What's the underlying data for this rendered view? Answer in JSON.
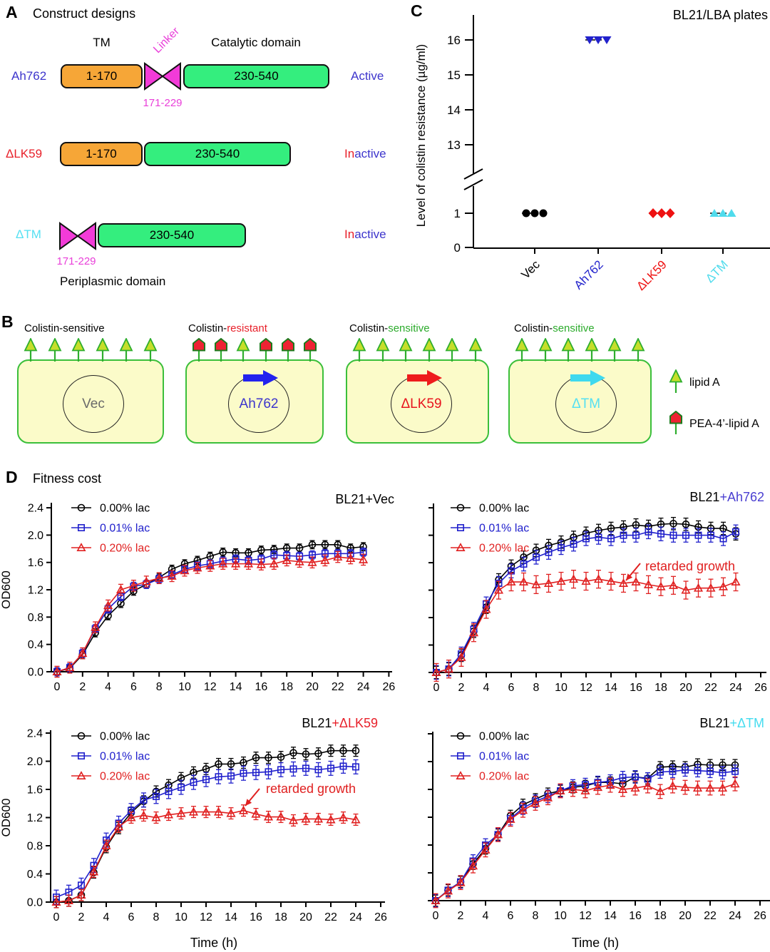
{
  "panels": {
    "a_letter": "A",
    "b_letter": "B",
    "c_letter": "C",
    "d_letter": "D"
  },
  "panelA": {
    "title": "Construct designs",
    "headers": {
      "tm": "TM",
      "linker": "Linker",
      "catalytic": "Catalytic domain"
    },
    "footer": "Periplasmic domain",
    "rows": [
      {
        "name": "Ah762",
        "name_color": "#3d35cc",
        "tm": "1-170",
        "cat": "230-540",
        "linker_range": "171-229",
        "activity_prefix": "",
        "activity_main": "Active"
      },
      {
        "name": "ΔLK59",
        "name_color": "#e8202a",
        "tm": "1-170",
        "cat": "230-540",
        "activity_prefix": "In",
        "activity_main": "active"
      },
      {
        "name": "ΔTM",
        "name_color": "#55e0f2",
        "cat": "230-540",
        "linker_range": "171-229",
        "activity_prefix": "In",
        "activity_main": "active"
      }
    ]
  },
  "panelB": {
    "cells": [
      {
        "header_prefix": "Colistin-",
        "header_suffix": "sensitive",
        "suffix_color": "#000000",
        "plasmid": "Vec",
        "plasmid_color": "#6a6a6a",
        "surface": [
          "lipidA",
          "lipidA",
          "lipidA",
          "lipidA",
          "lipidA",
          "lipidA"
        ]
      },
      {
        "header_prefix": "Colistin-",
        "header_suffix": "resistant",
        "suffix_color": "#e8202a",
        "plasmid": "Ah762",
        "plasmid_color": "#3d35cc",
        "arrow_color": "#2222ee",
        "surface": [
          "pea",
          "pea",
          "lipidA",
          "pea",
          "pea",
          "pea"
        ]
      },
      {
        "header_prefix": "Colistin-",
        "header_suffix": "sensitive",
        "suffix_color": "#2cab2c",
        "plasmid": "ΔLK59",
        "plasmid_color": "#e8141e",
        "arrow_color": "#ee1c1c",
        "surface": [
          "lipidA",
          "lipidA",
          "lipidA",
          "lipidA",
          "lipidA",
          "lipidA"
        ]
      },
      {
        "header_prefix": "Colistin-",
        "header_suffix": "sensitive",
        "suffix_color": "#2cab2c",
        "plasmid": "ΔTM",
        "plasmid_color": "#55e0f2",
        "arrow_color": "#3fd9ee",
        "surface": [
          "lipidA",
          "lipidA",
          "lipidA",
          "lipidA",
          "lipidA",
          "lipidA"
        ]
      }
    ],
    "legend": [
      {
        "icon": "lipidA",
        "label": "lipid A"
      },
      {
        "icon": "pea",
        "label": "PEA-4’-lipid A"
      }
    ]
  },
  "panelD_title": "Fitness cost",
  "chart_data": [
    {
      "id": "colistin_resistance",
      "type": "scatter",
      "title": "BL21/LBA plates",
      "ylabel": "Level of colistin resistance (µg/ml)",
      "broken_axis": true,
      "upper_ticks": [
        13,
        14,
        15,
        16
      ],
      "lower_ticks": [
        0,
        1
      ],
      "groups": [
        {
          "label": "Vec",
          "color": "#000000",
          "marker": "circle",
          "values": [
            1,
            1,
            1
          ]
        },
        {
          "label": "Ah762",
          "color": "#2222cc",
          "marker": "triangle-down",
          "values": [
            16,
            16,
            16
          ]
        },
        {
          "label": "ΔLK59",
          "color": "#ee1111",
          "marker": "diamond",
          "values": [
            1,
            1,
            1
          ]
        },
        {
          "label": "ΔTM",
          "color": "#4fdbec",
          "marker": "triangle-up",
          "values": [
            1,
            1,
            1
          ]
        }
      ]
    },
    {
      "id": "growth_vec",
      "type": "line",
      "title_prefix": "BL21",
      "title_suffix": "+Vec",
      "title_suffix_color": "#000000",
      "ylabel": "OD600",
      "xlim": [
        0,
        26
      ],
      "ylim": [
        0,
        2.4
      ],
      "x": [
        0,
        1,
        2,
        3,
        4,
        5,
        6,
        7,
        8,
        9,
        10,
        11,
        12,
        13,
        14,
        15,
        16,
        17,
        18,
        19,
        20,
        21,
        22,
        23,
        24
      ],
      "series": [
        {
          "name": "0.00% lac",
          "color": "#000000",
          "marker": "circle",
          "err": 0.06,
          "values": [
            0.0,
            0.05,
            0.25,
            0.57,
            0.82,
            1.0,
            1.18,
            1.28,
            1.38,
            1.5,
            1.58,
            1.63,
            1.69,
            1.75,
            1.74,
            1.74,
            1.78,
            1.79,
            1.81,
            1.81,
            1.86,
            1.86,
            1.86,
            1.81,
            1.83
          ]
        },
        {
          "name": "0.01% lac",
          "color": "#2020cc",
          "marker": "square",
          "err": 0.06,
          "values": [
            0.0,
            0.06,
            0.27,
            0.63,
            0.92,
            1.1,
            1.25,
            1.28,
            1.36,
            1.42,
            1.5,
            1.55,
            1.58,
            1.62,
            1.65,
            1.63,
            1.65,
            1.71,
            1.7,
            1.69,
            1.71,
            1.73,
            1.73,
            1.73,
            1.75
          ]
        },
        {
          "name": "0.20% lac",
          "color": "#e02020",
          "marker": "triangle",
          "err": 0.08,
          "values": [
            0.0,
            0.06,
            0.27,
            0.65,
            0.97,
            1.2,
            1.26,
            1.32,
            1.37,
            1.4,
            1.48,
            1.52,
            1.55,
            1.58,
            1.58,
            1.58,
            1.57,
            1.58,
            1.63,
            1.61,
            1.6,
            1.63,
            1.68,
            1.66,
            1.64
          ]
        }
      ]
    },
    {
      "id": "growth_ah762",
      "type": "line",
      "title_prefix": "BL21",
      "title_suffix": "+Ah762",
      "title_suffix_color": "#4a3fd1",
      "xlim": [
        0,
        26
      ],
      "ylim": [
        0,
        2.4
      ],
      "annotation": "retarded growth",
      "x": [
        0,
        1,
        2,
        3,
        4,
        5,
        6,
        7,
        8,
        9,
        10,
        11,
        12,
        13,
        14,
        15,
        16,
        17,
        18,
        19,
        20,
        21,
        22,
        23,
        24
      ],
      "series": [
        {
          "name": "0.00% lac",
          "color": "#000000",
          "marker": "circle",
          "err": 0.09,
          "values": [
            0.0,
            0.05,
            0.25,
            0.6,
            0.95,
            1.35,
            1.55,
            1.68,
            1.78,
            1.85,
            1.9,
            1.97,
            2.03,
            2.07,
            2.1,
            2.12,
            2.15,
            2.13,
            2.16,
            2.17,
            2.16,
            2.12,
            2.1,
            2.1,
            2.02
          ]
        },
        {
          "name": "0.01% lac",
          "color": "#2020cc",
          "marker": "square",
          "err": 0.1,
          "values": [
            0.0,
            0.05,
            0.27,
            0.63,
            1.0,
            1.3,
            1.48,
            1.58,
            1.68,
            1.75,
            1.82,
            1.87,
            1.95,
            1.97,
            1.95,
            2.0,
            2.0,
            2.05,
            2.02,
            2.0,
            2.0,
            2.0,
            2.0,
            1.95,
            2.05
          ]
        },
        {
          "name": "0.20% lac",
          "color": "#e02020",
          "marker": "triangle",
          "err": 0.13,
          "values": [
            0.0,
            0.05,
            0.22,
            0.58,
            0.92,
            1.2,
            1.32,
            1.32,
            1.28,
            1.3,
            1.33,
            1.36,
            1.33,
            1.36,
            1.33,
            1.3,
            1.32,
            1.28,
            1.25,
            1.27,
            1.2,
            1.23,
            1.23,
            1.25,
            1.32
          ]
        }
      ]
    },
    {
      "id": "growth_dlk59",
      "type": "line",
      "title_prefix": "BL21",
      "title_suffix": "+ΔLK59",
      "title_suffix_color": "#e8202a",
      "ylabel": "OD600",
      "xlabel": "Time (h)",
      "xlim": [
        0,
        26
      ],
      "ylim": [
        0,
        2.4
      ],
      "annotation": "retarded growth",
      "x": [
        0,
        1,
        2,
        3,
        4,
        5,
        6,
        7,
        8,
        9,
        10,
        11,
        12,
        13,
        14,
        15,
        16,
        17,
        18,
        19,
        20,
        21,
        22,
        23,
        24
      ],
      "series": [
        {
          "name": "0.00% lac",
          "color": "#000000",
          "marker": "circle",
          "err": 0.08,
          "values": [
            0.0,
            0.02,
            0.1,
            0.42,
            0.78,
            1.05,
            1.27,
            1.43,
            1.57,
            1.66,
            1.76,
            1.84,
            1.89,
            1.96,
            1.96,
            1.98,
            2.05,
            2.05,
            2.06,
            2.12,
            2.1,
            2.11,
            2.15,
            2.15,
            2.15
          ]
        },
        {
          "name": "0.01% lac",
          "color": "#2020cc",
          "marker": "square",
          "err": 0.1,
          "values": [
            0.07,
            0.14,
            0.24,
            0.52,
            0.88,
            1.12,
            1.3,
            1.45,
            1.5,
            1.57,
            1.63,
            1.7,
            1.74,
            1.78,
            1.79,
            1.83,
            1.84,
            1.85,
            1.88,
            1.89,
            1.9,
            1.88,
            1.9,
            1.93,
            1.92
          ]
        },
        {
          "name": "0.20% lac",
          "color": "#e02020",
          "marker": "triangle",
          "err": 0.08,
          "values": [
            0.0,
            0.02,
            0.1,
            0.43,
            0.8,
            1.07,
            1.2,
            1.23,
            1.2,
            1.24,
            1.26,
            1.28,
            1.28,
            1.28,
            1.26,
            1.3,
            1.25,
            1.21,
            1.21,
            1.16,
            1.18,
            1.18,
            1.17,
            1.2,
            1.17
          ]
        }
      ]
    },
    {
      "id": "growth_dtm",
      "type": "line",
      "title_prefix": "BL21",
      "title_suffix": "+ΔTM",
      "title_suffix_color": "#45dcef",
      "xlabel": "Time (h)",
      "xlim": [
        0,
        26
      ],
      "ylim": [
        0,
        2.4
      ],
      "x": [
        0,
        1,
        2,
        3,
        4,
        5,
        6,
        7,
        8,
        9,
        10,
        11,
        12,
        13,
        14,
        15,
        16,
        17,
        18,
        19,
        20,
        21,
        22,
        23,
        24
      ],
      "series": [
        {
          "name": "0.00% lac",
          "color": "#000000",
          "marker": "circle",
          "err": 0.08,
          "values": [
            0.0,
            0.15,
            0.27,
            0.53,
            0.75,
            0.95,
            1.22,
            1.38,
            1.46,
            1.54,
            1.58,
            1.63,
            1.65,
            1.7,
            1.7,
            1.68,
            1.78,
            1.76,
            1.92,
            1.93,
            1.92,
            1.96,
            1.95,
            1.95,
            1.95
          ]
        },
        {
          "name": "0.01% lac",
          "color": "#2020cc",
          "marker": "square",
          "err": 0.09,
          "values": [
            0.0,
            0.15,
            0.27,
            0.57,
            0.8,
            0.95,
            1.18,
            1.33,
            1.43,
            1.5,
            1.58,
            1.65,
            1.67,
            1.7,
            1.72,
            1.77,
            1.78,
            1.75,
            1.85,
            1.86,
            1.88,
            1.87,
            1.86,
            1.84,
            1.86
          ]
        },
        {
          "name": "0.20% lac",
          "color": "#e02020",
          "marker": "triangle",
          "err": 0.1,
          "values": [
            0.0,
            0.14,
            0.26,
            0.5,
            0.73,
            0.95,
            1.17,
            1.3,
            1.4,
            1.48,
            1.58,
            1.6,
            1.58,
            1.63,
            1.66,
            1.6,
            1.62,
            1.65,
            1.57,
            1.65,
            1.63,
            1.62,
            1.62,
            1.62,
            1.68
          ]
        }
      ]
    }
  ]
}
